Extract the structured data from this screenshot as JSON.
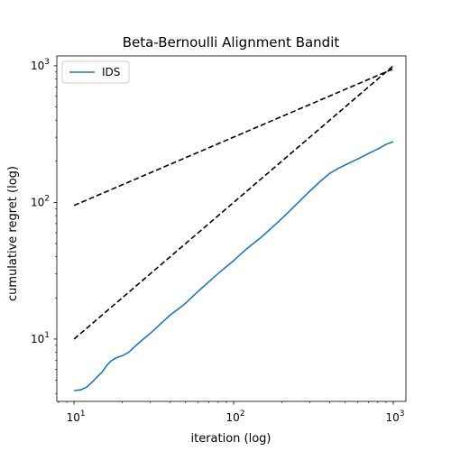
{
  "chart_data": {
    "type": "line",
    "title": "Beta-Bernoulli Alignment Bandit",
    "xlabel": "iteration (log)",
    "ylabel": "cumulative regret (log)",
    "xscale": "log",
    "yscale": "log",
    "xlim": [
      7.8,
      1200
    ],
    "ylim": [
      3.5,
      1180
    ],
    "xticks": [
      {
        "value": 10,
        "base": "10",
        "exp": "1"
      },
      {
        "value": 100,
        "base": "10",
        "exp": "2"
      },
      {
        "value": 1000,
        "base": "10",
        "exp": "3"
      }
    ],
    "yticks": [
      {
        "value": 10,
        "base": "10",
        "exp": "1"
      },
      {
        "value": 100,
        "base": "10",
        "exp": "2"
      },
      {
        "value": 1000,
        "base": "10",
        "exp": "3"
      }
    ],
    "grid": false,
    "legend": {
      "position": "top-left"
    },
    "series": [
      {
        "name": "IDS",
        "color": "#1f77b4",
        "style": "solid",
        "x": [
          10,
          11,
          12,
          13,
          14,
          15,
          16,
          17,
          18,
          19,
          20,
          22,
          25,
          28,
          30,
          35,
          40,
          45,
          50,
          60,
          70,
          80,
          100,
          120,
          150,
          180,
          200,
          250,
          300,
          350,
          400,
          450,
          500,
          600,
          700,
          800,
          900,
          1000
        ],
        "y": [
          4.2,
          4.25,
          4.45,
          4.85,
          5.3,
          5.75,
          6.4,
          6.9,
          7.2,
          7.4,
          7.55,
          8.0,
          9.2,
          10.3,
          11.0,
          13.0,
          15.0,
          16.6,
          18.3,
          22.4,
          26.3,
          30.2,
          37.5,
          45.5,
          56.0,
          68.0,
          76.0,
          98.0,
          121.0,
          143.0,
          163.0,
          177.0,
          188.0,
          208.0,
          228.0,
          246.0,
          266.0,
          278.0
        ]
      },
      {
        "color": "#000000",
        "style": "dashed",
        "x": [
          10,
          1000
        ],
        "y": [
          95,
          950
        ]
      },
      {
        "color": "#000000",
        "style": "dashed",
        "x": [
          10,
          1000
        ],
        "y": [
          10,
          1000
        ]
      }
    ]
  }
}
